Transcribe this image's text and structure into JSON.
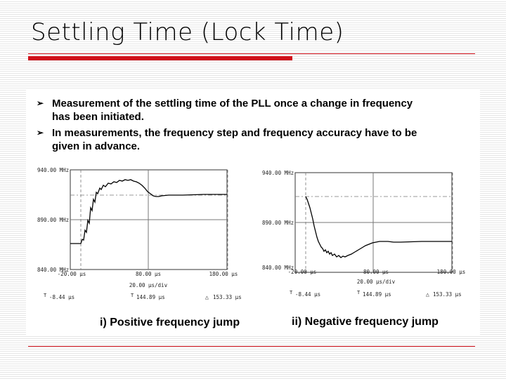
{
  "slide": {
    "title": "Settling Time (Lock Time)",
    "bullets": [
      "Measurement of the settling time of the PLL once a change in frequency has been initiated.",
      "In measurements, the frequency step and frequency accuracy have to be given in advance."
    ],
    "bullet_glyph": "➢",
    "colors": {
      "accent": "#d0101a",
      "trace": "#000000",
      "grid": "#777777"
    }
  },
  "plots": [
    {
      "name": "positive",
      "y_labels": [
        "940.00 MHz",
        "890.00 MHz",
        "840.00 MHz"
      ],
      "x_labels": [
        "-20.00 µs",
        "80.00 µs",
        "180.00 µs"
      ],
      "div_label": "20.00 µs/div",
      "marker_1": "-8.44 µs",
      "marker_2": "144.89 µs",
      "delta": "153.33 µs",
      "caption": "i) Positive frequency jump"
    },
    {
      "name": "negative",
      "y_labels": [
        "940.00 MHz",
        "890.00 MHz",
        "840.00 MHz"
      ],
      "x_labels": [
        "-20.00 µs",
        "80.00 µs",
        "180.00 µs"
      ],
      "div_label": "20.00 µs/div",
      "marker_1": "-8.44 µs",
      "marker_2": "144.89 µs",
      "delta": "153.33 µs",
      "caption": "ii) Negative frequency jump"
    }
  ]
}
